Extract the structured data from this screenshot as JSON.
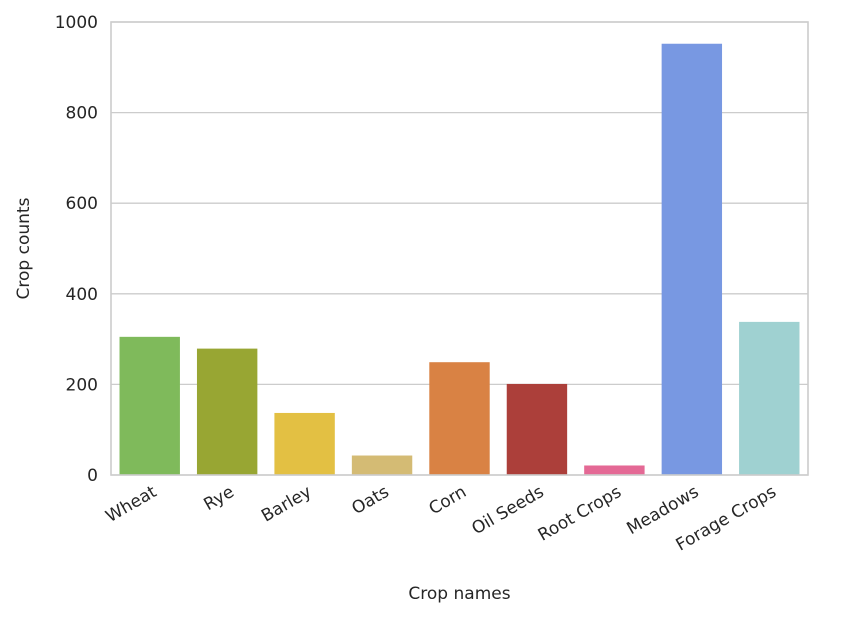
{
  "chart_data": {
    "type": "bar",
    "title": "",
    "xlabel": "Crop names",
    "ylabel": "Crop counts",
    "categories": [
      "Wheat",
      "Rye",
      "Barley",
      "Oats",
      "Corn",
      "Oil Seeds",
      "Root Crops",
      "Meadows",
      "Forage Crops"
    ],
    "values": [
      305,
      279,
      137,
      43,
      249,
      201,
      21,
      952,
      338
    ],
    "colors": [
      "#7fba5b",
      "#98a633",
      "#e3c043",
      "#d4bb74",
      "#d98244",
      "#ac3f3a",
      "#e46995",
      "#7898e2",
      "#9fd1d1"
    ],
    "ylim": [
      0,
      1000
    ],
    "yticks": [
      0,
      200,
      400,
      600,
      800,
      1000
    ],
    "grid": "y-major",
    "legend": "none"
  }
}
